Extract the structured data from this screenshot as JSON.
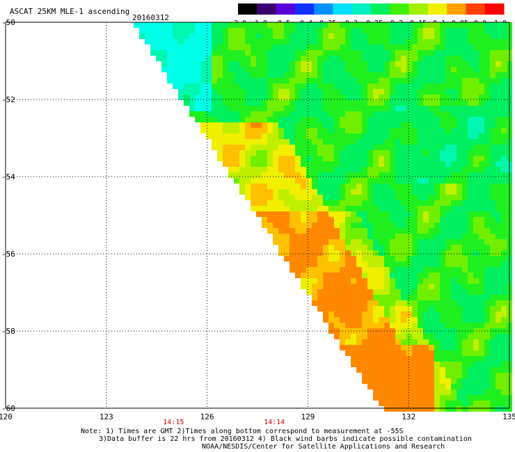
{
  "header": {
    "title": "ASCAT 25KM MLE-1 ascending",
    "date": "20160312"
  },
  "colorbar": {
    "labels": [
      "-3.0",
      "-1.0",
      "-0.5",
      "-0.4",
      "-0.35",
      "-0.3",
      "-0.25",
      "-0.2",
      "-0.15",
      "-0.1",
      "-0.05",
      "0.0",
      "1.0"
    ],
    "colors": [
      "#000000",
      "#3a006e",
      "#5a00d8",
      "#1030ff",
      "#0090ff",
      "#00e0ff",
      "#00f0c0",
      "#00f060",
      "#40f000",
      "#a0f000",
      "#f0f000",
      "#ffa000",
      "#ff4000",
      "#ff0000"
    ]
  },
  "map": {
    "lon_ticks": [
      {
        "value": 120,
        "label": "120"
      },
      {
        "value": 123,
        "label": "123"
      },
      {
        "value": 126,
        "label": "126"
      },
      {
        "value": 129,
        "label": "129"
      },
      {
        "value": 132,
        "label": "132"
      },
      {
        "value": 135,
        "label": "135"
      }
    ],
    "lat_ticks": [
      {
        "value": -50,
        "label": "-50"
      },
      {
        "value": -52,
        "label": "-52"
      },
      {
        "value": -54,
        "label": "-54"
      },
      {
        "value": -56,
        "label": "-56"
      },
      {
        "value": -58,
        "label": "-58"
      },
      {
        "value": -60,
        "label": "-60"
      }
    ],
    "time_labels": [
      {
        "lon": 125,
        "label": "14:15"
      },
      {
        "lon": 128,
        "label": "14:14"
      }
    ],
    "time_color": "#d00000",
    "lon_range": [
      120,
      135
    ],
    "lat_range": [
      -50,
      -60
    ]
  },
  "notes": {
    "line1": "Note: 1) Times are GMT 2)Times along bottom correspond to measurement at -55S",
    "line2": "3)Data buffer is 22 hrs from 20160312 4) Black wind barbs indicate possible contamination",
    "line3": "NOAA/NESDIS/Center for Satellite Applications and Research"
  }
}
